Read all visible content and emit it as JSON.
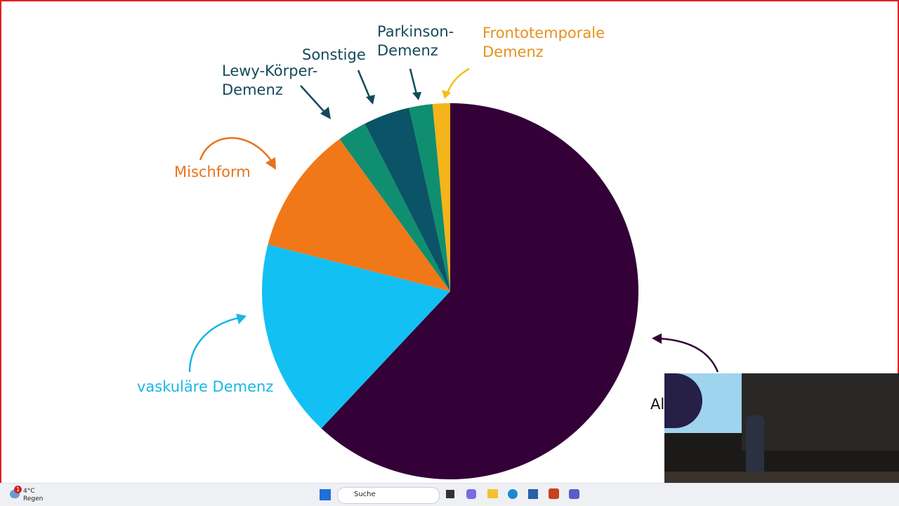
{
  "chart_data": {
    "type": "pie",
    "categories": [
      "Al",
      "vaskuläre Demenz",
      "Mischform",
      "Lewy-Körper-\nDemenz",
      "Sonstige",
      "Parkinson-\nDemenz",
      "Frontotemporale\nDemenz"
    ],
    "values": [
      62,
      17,
      11,
      2.5,
      4,
      2,
      1.5
    ],
    "colors": [
      "#330038",
      "#13c0f4",
      "#f07819",
      "#0f8f70",
      "#0b5467",
      "#0f8f70",
      "#f5b41a"
    ],
    "label_colors": [
      "#111111",
      "#1ab6e6",
      "#e8731c",
      "#134a5a",
      "#134a5a",
      "#134a5a",
      "#e8901c"
    ]
  },
  "taskbar": {
    "badge": "1",
    "temperature": "4°C",
    "weather": "Regen",
    "search": "Suche"
  }
}
